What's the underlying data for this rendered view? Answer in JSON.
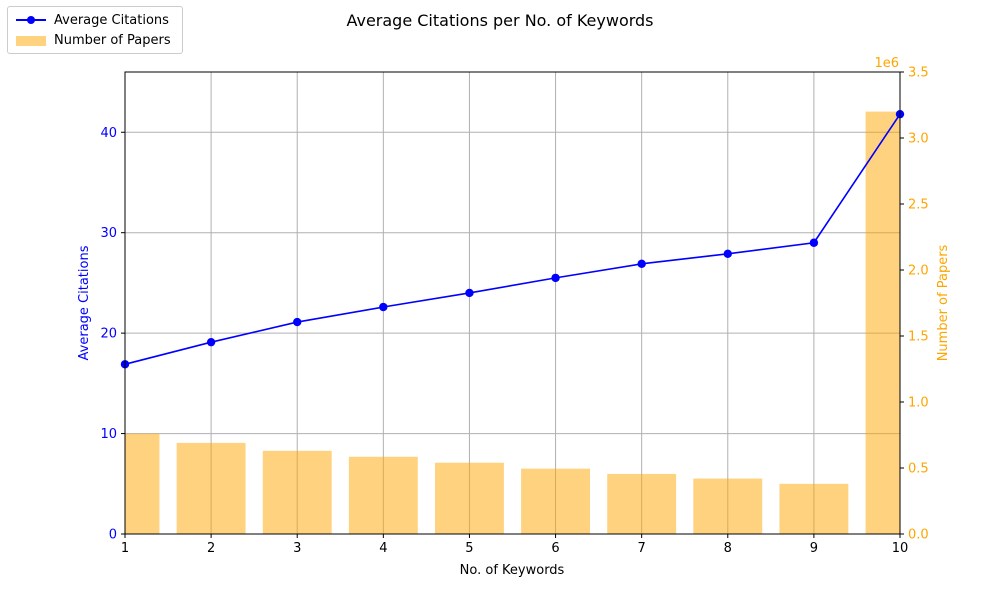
{
  "chart_data": {
    "type": "bar+line",
    "title": "Average Citations per No. of Keywords",
    "xlabel": "No. of Keywords",
    "x": [
      1,
      2,
      3,
      4,
      5,
      6,
      7,
      8,
      9,
      10
    ],
    "xlim": [
      1,
      10
    ],
    "xticks": [
      "1",
      "2",
      "3",
      "4",
      "5",
      "6",
      "7",
      "8",
      "9",
      "10"
    ],
    "grid": true,
    "legend_position": "top-left",
    "series": [
      {
        "name": "Average Citations",
        "type": "line",
        "axis": "left",
        "color": "#0000ff",
        "marker": "circle",
        "values": [
          16.9,
          19.1,
          21.1,
          22.6,
          24.0,
          25.5,
          26.9,
          27.9,
          29.0,
          41.8
        ]
      },
      {
        "name": "Number of Papers",
        "type": "bar",
        "axis": "right",
        "color": "#FFA500",
        "opacity": 0.5,
        "values": [
          760000,
          690000,
          630000,
          585000,
          540000,
          495000,
          455000,
          420000,
          380000,
          3200000
        ]
      }
    ],
    "y_left": {
      "label": "Average Citations",
      "color": "#0000ff",
      "ylim": [
        0,
        46
      ],
      "ticks": [
        0,
        10,
        20,
        30,
        40
      ],
      "tick_labels": [
        "0",
        "10",
        "20",
        "30",
        "40"
      ]
    },
    "y_right": {
      "label": "Number of Papers",
      "color": "#FFA500",
      "ylim": [
        0,
        3500000
      ],
      "offset_text": "1e6",
      "ticks": [
        0,
        500000,
        1000000,
        1500000,
        2000000,
        2500000,
        3000000,
        3500000
      ],
      "tick_labels": [
        "0.0",
        "0.5",
        "1.0",
        "1.5",
        "2.0",
        "2.5",
        "3.0",
        "3.5"
      ]
    }
  }
}
